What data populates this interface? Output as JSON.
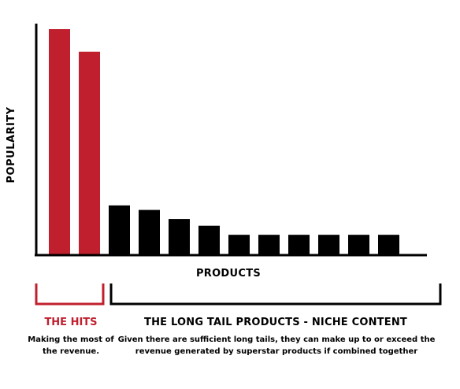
{
  "chart_data": {
    "type": "bar",
    "title": "",
    "xlabel": "PRODUCTS",
    "ylabel": "POPULARITY",
    "ylim": [
      0,
      100
    ],
    "grid": false,
    "values": [
      100,
      90,
      22,
      20,
      16,
      13,
      9,
      9,
      9,
      9,
      9,
      9
    ],
    "bar_colors": [
      "#c0202e",
      "#c0202e",
      "#000000",
      "#000000",
      "#000000",
      "#000000",
      "#000000",
      "#000000",
      "#000000",
      "#000000",
      "#000000",
      "#000000"
    ],
    "hits_count": 2,
    "hits_color": "#c0202e",
    "tail_color": "#000000",
    "annotations": {
      "hits_title": "THE HITS",
      "hits_desc": "Making the most of the revenue.",
      "tail_title": "THE LONG TAIL PRODUCTS - NICHE CONTENT",
      "tail_desc": "Given there are sufficient long tails, they can make up to or exceed the revenue generated by superstar products if combined together"
    }
  }
}
